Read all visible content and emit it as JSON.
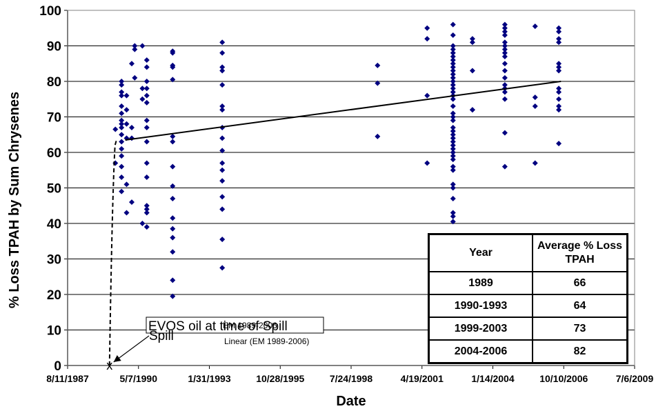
{
  "chart_data": {
    "type": "scatter",
    "title": "",
    "xlabel": "Date",
    "ylabel": "% Loss TPAH by Sum Chrysenes",
    "x_ticks": [
      "8/11/1987",
      "5/7/1990",
      "1/31/1993",
      "10/28/1995",
      "7/24/1998",
      "4/19/2001",
      "1/14/2004",
      "10/10/2006",
      "7/6/2009"
    ],
    "xlim": [
      "1987-08-11",
      "2009-07-06"
    ],
    "y_ticks": [
      0,
      10,
      20,
      30,
      40,
      50,
      60,
      70,
      80,
      90,
      100
    ],
    "ylim": [
      0,
      100
    ],
    "grid": "horizontal",
    "colors": {
      "points": "#000080",
      "trend": "#000000"
    },
    "series": [
      {
        "points": [
          [
            "1989-06-15",
            66.5
          ],
          [
            "1989-06-15",
            57
          ],
          [
            "1989-09-10",
            80
          ],
          [
            "1989-09-10",
            79
          ],
          [
            "1989-09-10",
            77
          ],
          [
            "1989-09-10",
            76
          ],
          [
            "1989-09-10",
            73
          ],
          [
            "1989-09-10",
            71
          ],
          [
            "1989-09-10",
            69
          ],
          [
            "1989-09-10",
            68
          ],
          [
            "1989-09-10",
            67
          ],
          [
            "1989-09-10",
            65
          ],
          [
            "1989-09-10",
            63
          ],
          [
            "1989-09-10",
            61
          ],
          [
            "1989-09-10",
            59
          ],
          [
            "1989-09-10",
            56
          ],
          [
            "1989-09-10",
            53
          ],
          [
            "1989-09-10",
            49
          ],
          [
            "1989-11-20",
            76
          ],
          [
            "1989-11-20",
            72
          ],
          [
            "1989-11-20",
            68
          ],
          [
            "1989-11-20",
            64
          ],
          [
            "1989-11-20",
            51
          ],
          [
            "1989-11-20",
            43
          ],
          [
            "1990-02-01",
            85
          ],
          [
            "1990-02-01",
            67
          ],
          [
            "1990-02-01",
            64
          ],
          [
            "1990-02-01",
            46
          ],
          [
            "1990-03-15",
            90
          ],
          [
            "1990-03-15",
            89
          ],
          [
            "1990-03-15",
            81
          ],
          [
            "1990-07-01",
            90
          ],
          [
            "1990-07-01",
            78
          ],
          [
            "1990-07-01",
            75
          ],
          [
            "1990-07-01",
            40
          ],
          [
            "1990-09-01",
            86
          ],
          [
            "1990-09-01",
            84
          ],
          [
            "1990-09-01",
            80
          ],
          [
            "1990-09-01",
            78
          ],
          [
            "1990-09-01",
            76
          ],
          [
            "1990-09-01",
            74
          ],
          [
            "1990-09-01",
            69
          ],
          [
            "1990-09-01",
            67
          ],
          [
            "1990-09-01",
            63
          ],
          [
            "1990-09-01",
            57
          ],
          [
            "1990-09-01",
            53
          ],
          [
            "1990-09-01",
            45
          ],
          [
            "1990-09-01",
            44
          ],
          [
            "1990-09-01",
            43
          ],
          [
            "1990-09-01",
            39
          ],
          [
            "1991-09-01",
            88.5
          ],
          [
            "1991-09-01",
            88
          ],
          [
            "1991-09-01",
            84.5
          ],
          [
            "1991-09-01",
            84
          ],
          [
            "1991-09-01",
            80.5
          ],
          [
            "1991-09-01",
            64.5
          ],
          [
            "1991-09-01",
            63
          ],
          [
            "1991-09-01",
            56
          ],
          [
            "1991-09-01",
            50.5
          ],
          [
            "1991-09-01",
            47
          ],
          [
            "1991-09-01",
            41.5
          ],
          [
            "1991-09-01",
            38.5
          ],
          [
            "1991-09-01",
            36
          ],
          [
            "1991-09-01",
            32
          ],
          [
            "1991-09-01",
            24
          ],
          [
            "1991-09-01",
            19.5
          ],
          [
            "1993-08-01",
            91
          ],
          [
            "1993-08-01",
            88
          ],
          [
            "1993-08-01",
            84
          ],
          [
            "1993-08-01",
            83
          ],
          [
            "1993-08-01",
            79
          ],
          [
            "1993-08-01",
            73
          ],
          [
            "1993-08-01",
            72
          ],
          [
            "1993-08-01",
            67
          ],
          [
            "1993-08-01",
            64
          ],
          [
            "1993-08-01",
            60.5
          ],
          [
            "1993-08-01",
            57
          ],
          [
            "1993-08-01",
            55
          ],
          [
            "1993-08-01",
            52
          ],
          [
            "1993-08-01",
            47.5
          ],
          [
            "1993-08-01",
            44
          ],
          [
            "1993-08-01",
            35.5
          ],
          [
            "1993-08-01",
            27.5
          ],
          [
            "1999-08-01",
            84.5
          ],
          [
            "1999-08-01",
            79.5
          ],
          [
            "1999-08-01",
            64.5
          ],
          [
            "2001-07-01",
            95
          ],
          [
            "2001-07-01",
            92
          ],
          [
            "2001-07-01",
            76
          ],
          [
            "2001-07-01",
            57
          ],
          [
            "2002-07-01",
            96
          ],
          [
            "2002-07-01",
            93
          ],
          [
            "2002-07-01",
            90
          ],
          [
            "2002-07-01",
            89
          ],
          [
            "2002-07-01",
            88
          ],
          [
            "2002-07-01",
            87
          ],
          [
            "2002-07-01",
            86
          ],
          [
            "2002-07-01",
            85
          ],
          [
            "2002-07-01",
            84
          ],
          [
            "2002-07-01",
            83
          ],
          [
            "2002-07-01",
            82
          ],
          [
            "2002-07-01",
            81
          ],
          [
            "2002-07-01",
            80
          ],
          [
            "2002-07-01",
            79
          ],
          [
            "2002-07-01",
            78
          ],
          [
            "2002-07-01",
            77
          ],
          [
            "2002-07-01",
            76
          ],
          [
            "2002-07-01",
            75
          ],
          [
            "2002-07-01",
            73
          ],
          [
            "2002-07-01",
            71
          ],
          [
            "2002-07-01",
            70
          ],
          [
            "2002-07-01",
            69
          ],
          [
            "2002-07-01",
            67
          ],
          [
            "2002-07-01",
            66
          ],
          [
            "2002-07-01",
            65
          ],
          [
            "2002-07-01",
            64
          ],
          [
            "2002-07-01",
            63
          ],
          [
            "2002-07-01",
            62
          ],
          [
            "2002-07-01",
            61
          ],
          [
            "2002-07-01",
            60
          ],
          [
            "2002-07-01",
            59
          ],
          [
            "2002-07-01",
            58
          ],
          [
            "2002-07-01",
            56
          ],
          [
            "2002-07-01",
            55
          ],
          [
            "2002-07-01",
            51
          ],
          [
            "2002-07-01",
            50
          ],
          [
            "2002-07-01",
            47
          ],
          [
            "2002-07-01",
            43
          ],
          [
            "2002-07-01",
            42
          ],
          [
            "2002-07-01",
            40.5
          ],
          [
            "2003-04-01",
            92
          ],
          [
            "2003-04-01",
            91
          ],
          [
            "2003-04-01",
            83
          ],
          [
            "2003-04-01",
            72
          ],
          [
            "2003-04-01",
            72
          ],
          [
            "2004-07-01",
            96
          ],
          [
            "2004-07-01",
            95
          ],
          [
            "2004-07-01",
            94
          ],
          [
            "2004-07-01",
            93
          ],
          [
            "2004-07-01",
            91
          ],
          [
            "2004-07-01",
            90
          ],
          [
            "2004-07-01",
            89
          ],
          [
            "2004-07-01",
            88
          ],
          [
            "2004-07-01",
            87
          ],
          [
            "2004-07-01",
            85
          ],
          [
            "2004-07-01",
            83
          ],
          [
            "2004-07-01",
            81
          ],
          [
            "2004-07-01",
            79
          ],
          [
            "2004-07-01",
            78
          ],
          [
            "2004-07-01",
            77
          ],
          [
            "2004-07-01",
            75
          ],
          [
            "2004-07-01",
            65.5
          ],
          [
            "2004-07-01",
            56
          ],
          [
            "2005-09-01",
            95.5
          ],
          [
            "2005-09-01",
            75.5
          ],
          [
            "2005-09-01",
            73
          ],
          [
            "2005-09-01",
            57
          ],
          [
            "2006-08-01",
            95
          ],
          [
            "2006-08-01",
            94
          ],
          [
            "2006-08-01",
            92
          ],
          [
            "2006-08-01",
            91
          ],
          [
            "2006-08-01",
            85
          ],
          [
            "2006-08-01",
            84
          ],
          [
            "2006-08-01",
            83
          ],
          [
            "2006-08-01",
            78
          ],
          [
            "2006-08-01",
            77
          ],
          [
            "2006-08-01",
            75
          ],
          [
            "2006-08-01",
            73
          ],
          [
            "2006-08-01",
            72
          ],
          [
            "2006-08-01",
            62.5
          ]
        ]
      }
    ],
    "trendline": {
      "points": [
        [
          "1989-11-01",
          63.5
        ],
        [
          "2006-09-01",
          80
        ]
      ]
    },
    "spill_curve": {
      "points": [
        [
          "1989-03-24",
          0
        ],
        [
          "1989-05-01",
          48
        ],
        [
          "1989-06-10",
          62
        ],
        [
          "1989-07-01",
          63.5
        ]
      ]
    },
    "spill_point": [
      "1989-03-24",
      0
    ],
    "annotations": {
      "spill_point_marker": "x",
      "spill_box_text": "EVOS oil at time of Spill",
      "spill_label": "Spill",
      "legend_overlap": "EM 1989-2006",
      "linear_label": "Linear (EM 1989-2006)"
    },
    "table": {
      "headers": [
        "Year",
        "Average % Loss TPAH"
      ],
      "rows": [
        [
          "1989",
          "66"
        ],
        [
          "1990-1993",
          "64"
        ],
        [
          "1999-2003",
          "73"
        ],
        [
          "2004-2006",
          "82"
        ]
      ]
    }
  }
}
